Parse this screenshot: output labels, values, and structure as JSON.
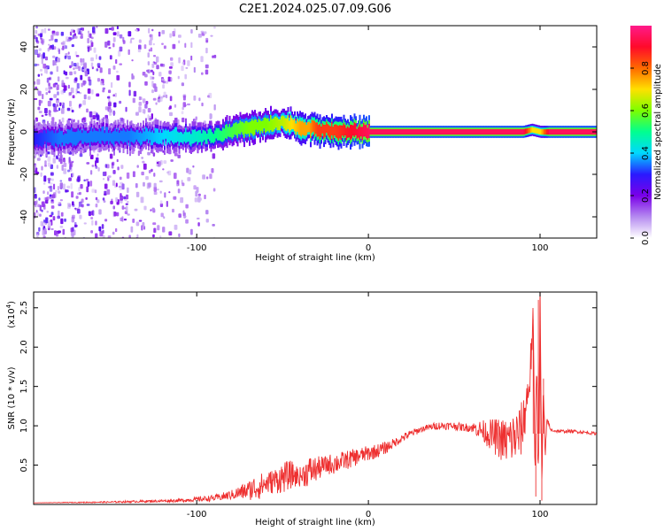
{
  "title": "C2E1.2024.025.07.09.G06",
  "chart_data": [
    {
      "type": "heatmap",
      "xlabel": "Height of straight line (km)",
      "ylabel": "Frequency (Hz)",
      "xlim": [
        -195,
        133
      ],
      "ylim": [
        -50,
        50
      ],
      "xticks": [
        -100,
        0,
        100
      ],
      "xtick_labels": [
        "-100",
        "0",
        "100"
      ],
      "yticks": [
        -40,
        -20,
        0,
        20,
        40
      ],
      "ytick_labels": [
        "-40",
        "-20",
        "0",
        "20",
        "40"
      ],
      "colorbar": {
        "label": "Normalized spectral amplitude",
        "range": [
          0,
          1
        ],
        "ticks": [
          0.0,
          0.2,
          0.4,
          0.6,
          0.8
        ],
        "tick_labels": [
          "0.0",
          "0.2",
          "0.4",
          "0.6",
          "0.8"
        ],
        "colors": [
          "#ffffff",
          "#b58af0",
          "#7a00e8",
          "#2a1aff",
          "#00d8ff",
          "#00ff90",
          "#7cff00",
          "#ffe000",
          "#ff6a00",
          "#ff0a2a",
          "#ff1a8a"
        ]
      },
      "ridge": {
        "x": [
          -195,
          -180,
          -160,
          -140,
          -120,
          -100,
          -90,
          -80,
          -70,
          -60,
          -50,
          -45,
          -40,
          -35,
          -30,
          -25,
          -20,
          -10,
          0,
          20,
          60,
          90,
          95,
          100,
          105,
          133
        ],
        "freq": [
          -3,
          -3,
          -2,
          -2,
          -2,
          -3,
          -2,
          0,
          2,
          3,
          4,
          3,
          2,
          2,
          1,
          1,
          0,
          0,
          0,
          0,
          0,
          0,
          1,
          0,
          0,
          0
        ],
        "amplitude": [
          0.3,
          0.35,
          0.35,
          0.35,
          0.4,
          0.45,
          0.5,
          0.55,
          0.6,
          0.6,
          0.65,
          0.7,
          0.75,
          0.75,
          0.85,
          0.85,
          0.85,
          0.9,
          0.95,
          0.95,
          0.95,
          0.95,
          0.7,
          0.7,
          0.95,
          0.95
        ]
      },
      "scatter_band": {
        "x": [
          -195,
          -90
        ],
        "freq": [
          -50,
          50
        ],
        "amplitude": [
          0.05,
          0.3
        ]
      }
    },
    {
      "type": "line",
      "xlabel": "Height of straight line (km)",
      "ylabel": "SNR (10 * v/v)",
      "multiplier_label": "(x10",
      "multiplier_exponent": "4",
      "multiplier_close": ")",
      "xlim": [
        -195,
        133
      ],
      "ylim": [
        0,
        2.7
      ],
      "xticks": [
        -100,
        0,
        100
      ],
      "xtick_labels": [
        "-100",
        "0",
        "100"
      ],
      "yticks": [
        0.5,
        1.0,
        1.5,
        2.0,
        2.5
      ],
      "ytick_labels": [
        "0.5",
        "1.0",
        "1.5",
        "2.0",
        "2.5"
      ],
      "series": [
        {
          "name": "SNR",
          "color": "#ee3030",
          "x": [
            -195,
            -150,
            -110,
            -90,
            -80,
            -70,
            -65,
            -60,
            -55,
            -50,
            -45,
            -40,
            -35,
            -30,
            -25,
            -20,
            -15,
            -10,
            -5,
            0,
            5,
            10,
            15,
            20,
            25,
            30,
            35,
            40,
            45,
            50,
            55,
            60,
            65,
            70,
            75,
            80,
            85,
            88,
            90,
            92,
            94,
            96,
            97,
            98,
            99,
            100,
            101,
            102,
            103,
            104,
            106,
            110,
            120,
            133
          ],
          "y": [
            0.02,
            0.03,
            0.05,
            0.08,
            0.12,
            0.18,
            0.22,
            0.26,
            0.3,
            0.34,
            0.38,
            0.35,
            0.42,
            0.45,
            0.5,
            0.52,
            0.55,
            0.58,
            0.62,
            0.65,
            0.68,
            0.72,
            0.78,
            0.85,
            0.9,
            0.95,
            0.98,
            1.0,
            1.0,
            1.0,
            0.98,
            0.98,
            0.95,
            0.9,
            0.85,
            0.8,
            0.85,
            0.9,
            1.0,
            1.3,
            1.6,
            2.35,
            0.4,
            1.9,
            0.3,
            2.7,
            0.2,
            1.5,
            0.5,
            1.1,
            0.95,
            0.93,
            0.93,
            0.9
          ],
          "noise_amplitude": [
            0.0,
            0.01,
            0.02,
            0.04,
            0.06,
            0.12,
            0.18,
            0.14,
            0.16,
            0.2,
            0.18,
            0.12,
            0.2,
            0.16,
            0.12,
            0.14,
            0.12,
            0.12,
            0.1,
            0.1,
            0.09,
            0.08,
            0.06,
            0.05,
            0.05,
            0.04,
            0.04,
            0.05,
            0.05,
            0.05,
            0.05,
            0.06,
            0.12,
            0.18,
            0.25,
            0.3,
            0.35,
            0.35,
            0.35,
            0.3,
            0.3,
            0.2,
            0.2,
            0.2,
            0.2,
            0.2,
            0.2,
            0.2,
            0.15,
            0.05,
            0.02,
            0.02,
            0.02,
            0.02
          ]
        }
      ]
    }
  ]
}
